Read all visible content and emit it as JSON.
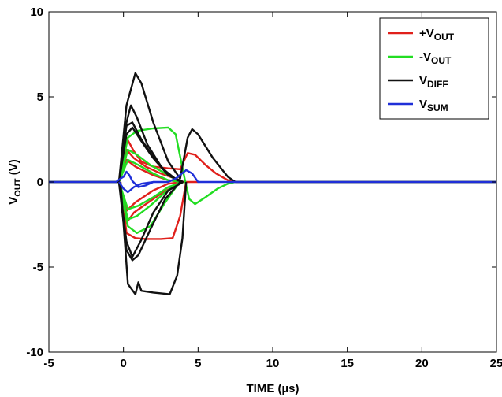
{
  "chart_data": {
    "type": "line",
    "xlabel": "TIME (µs)",
    "ylabel": "V",
    "ylabel_sub": "OUT",
    "ylabel_unit": " (V)",
    "xlim": [
      -5,
      25
    ],
    "ylim": [
      -10,
      10
    ],
    "x_ticks": [
      -5,
      0,
      5,
      10,
      15,
      20,
      25
    ],
    "y_ticks": [
      10,
      5,
      0,
      -5,
      -10
    ],
    "grid": false,
    "legend_position": "top-right",
    "series": [
      {
        "name": "+V",
        "name_sub": "OUT",
        "color": "#e0201b",
        "traces": [
          [
            [
              -5,
              0
            ],
            [
              -0.3,
              0
            ],
            [
              0.2,
              2.6
            ],
            [
              0.7,
              1.8
            ],
            [
              1.2,
              1.2
            ],
            [
              2,
              0.9
            ],
            [
              3,
              0.8
            ],
            [
              3.8,
              0.75
            ],
            [
              4.3,
              1.7
            ],
            [
              4.8,
              1.6
            ],
            [
              5.5,
              1.0
            ],
            [
              6.2,
              0.5
            ],
            [
              7,
              0.1
            ],
            [
              7.5,
              0
            ],
            [
              25,
              0
            ]
          ],
          [
            [
              -0.3,
              0
            ],
            [
              0.2,
              1.9
            ],
            [
              0.7,
              1.4
            ],
            [
              1.5,
              0.9
            ],
            [
              2.5,
              0.5
            ],
            [
              3.5,
              0.2
            ],
            [
              4,
              0
            ],
            [
              5,
              0
            ]
          ],
          [
            [
              -0.3,
              0
            ],
            [
              0.2,
              1.3
            ],
            [
              0.8,
              0.9
            ],
            [
              2,
              0.4
            ],
            [
              3,
              0.1
            ],
            [
              4,
              0
            ]
          ],
          [
            [
              -0.3,
              0
            ],
            [
              0.2,
              -2.4
            ],
            [
              0.7,
              -1.8
            ],
            [
              1.5,
              -1.3
            ],
            [
              2.5,
              -0.7
            ],
            [
              3.5,
              -0.2
            ],
            [
              4,
              0
            ]
          ],
          [
            [
              -0.3,
              0
            ],
            [
              0.2,
              -1.7
            ],
            [
              0.8,
              -1.2
            ],
            [
              2,
              -0.5
            ],
            [
              3,
              -0.1
            ],
            [
              4,
              0
            ]
          ],
          [
            [
              -0.2,
              0
            ],
            [
              0.2,
              -3.0
            ],
            [
              0.8,
              -3.3
            ],
            [
              1.5,
              -3.35
            ],
            [
              2.5,
              -3.35
            ],
            [
              3.3,
              -3.3
            ],
            [
              3.8,
              -2.0
            ],
            [
              4.2,
              0
            ]
          ]
        ]
      },
      {
        "name": "-V",
        "name_sub": "OUT",
        "color": "#22dd22",
        "traces": [
          [
            [
              -5,
              0
            ],
            [
              -0.3,
              0
            ],
            [
              0.3,
              2.6
            ],
            [
              0.9,
              3.0
            ],
            [
              2,
              3.15
            ],
            [
              3,
              3.2
            ],
            [
              3.5,
              2.8
            ],
            [
              4.1,
              0.2
            ],
            [
              4.4,
              -1.0
            ],
            [
              4.8,
              -1.3
            ],
            [
              5.5,
              -0.9
            ],
            [
              6.3,
              -0.4
            ],
            [
              7,
              -0.1
            ],
            [
              7.5,
              0
            ],
            [
              25,
              0
            ]
          ],
          [
            [
              -0.3,
              0
            ],
            [
              0.3,
              1.9
            ],
            [
              0.9,
              1.6
            ],
            [
              1.8,
              1.0
            ],
            [
              2.8,
              0.5
            ],
            [
              3.6,
              0.1
            ],
            [
              4,
              0
            ]
          ],
          [
            [
              -0.3,
              0
            ],
            [
              0.3,
              1.3
            ],
            [
              1,
              1.0
            ],
            [
              2,
              0.5
            ],
            [
              3,
              0.1
            ],
            [
              4,
              0
            ]
          ],
          [
            [
              -0.3,
              0
            ],
            [
              0.3,
              -1.6
            ],
            [
              1,
              -1.4
            ],
            [
              2,
              -0.9
            ],
            [
              3,
              -0.3
            ],
            [
              4,
              0
            ]
          ],
          [
            [
              -0.3,
              0
            ],
            [
              0.3,
              -2.2
            ],
            [
              0.9,
              -2.0
            ],
            [
              1.8,
              -1.4
            ],
            [
              2.8,
              -0.6
            ],
            [
              3.6,
              -0.1
            ],
            [
              4,
              0
            ]
          ],
          [
            [
              -0.3,
              0
            ],
            [
              0.3,
              -2.6
            ],
            [
              0.9,
              -3.0
            ],
            [
              1.8,
              -2.6
            ],
            [
              2.8,
              -1.2
            ],
            [
              3.6,
              -0.2
            ],
            [
              4,
              0
            ]
          ]
        ]
      },
      {
        "name": "V",
        "name_sub": "DIFF",
        "color": "#111111",
        "traces": [
          [
            [
              -5,
              0
            ],
            [
              -0.3,
              0
            ],
            [
              0.2,
              4.5
            ],
            [
              0.8,
              6.4
            ],
            [
              1.2,
              5.8
            ],
            [
              2,
              3.5
            ],
            [
              3,
              1.2
            ],
            [
              3.8,
              0.2
            ],
            [
              4.3,
              2.6
            ],
            [
              4.6,
              3.1
            ],
            [
              5,
              2.8
            ],
            [
              6,
              1.4
            ],
            [
              7,
              0.3
            ],
            [
              7.5,
              0
            ],
            [
              25,
              0
            ]
          ],
          [
            [
              -0.3,
              0
            ],
            [
              0.2,
              3.5
            ],
            [
              0.5,
              4.5
            ],
            [
              0.9,
              3.8
            ],
            [
              1.6,
              2.2
            ],
            [
              2.6,
              0.8
            ],
            [
              3.6,
              0.1
            ],
            [
              4,
              0
            ]
          ],
          [
            [
              -0.3,
              0
            ],
            [
              0.2,
              3.3
            ],
            [
              0.6,
              3.5
            ],
            [
              1.2,
              2.5
            ],
            [
              2.2,
              1.2
            ],
            [
              3.2,
              0.3
            ],
            [
              4,
              0
            ]
          ],
          [
            [
              -0.3,
              0
            ],
            [
              0.2,
              2.8
            ],
            [
              0.6,
              3.2
            ],
            [
              1.2,
              2.4
            ],
            [
              2,
              1.4
            ],
            [
              3,
              0.4
            ],
            [
              4,
              0
            ]
          ],
          [
            [
              -0.3,
              0
            ],
            [
              0.2,
              -3.5
            ],
            [
              0.6,
              -4.4
            ],
            [
              1.2,
              -3.4
            ],
            [
              2,
              -1.8
            ],
            [
              3,
              -0.5
            ],
            [
              4,
              0
            ]
          ],
          [
            [
              -0.3,
              0
            ],
            [
              0.2,
              -4.0
            ],
            [
              0.6,
              -4.6
            ],
            [
              1,
              -4.3
            ],
            [
              1.8,
              -2.8
            ],
            [
              2.8,
              -1.0
            ],
            [
              3.8,
              0
            ],
            [
              4,
              0
            ]
          ],
          [
            [
              -0.2,
              0
            ],
            [
              0.3,
              -6.0
            ],
            [
              0.8,
              -6.6
            ],
            [
              1.0,
              -5.9
            ],
            [
              1.2,
              -6.4
            ],
            [
              2,
              -6.5
            ],
            [
              3.1,
              -6.6
            ],
            [
              3.6,
              -5.5
            ],
            [
              3.95,
              -3.3
            ],
            [
              4.2,
              0
            ]
          ]
        ]
      },
      {
        "name": "V",
        "name_sub": "SUM",
        "color": "#1f2fd8",
        "traces": [
          [
            [
              -5,
              0
            ],
            [
              -0.5,
              0
            ],
            [
              -0.2,
              0.2
            ],
            [
              0,
              0.3
            ],
            [
              0.2,
              0.6
            ],
            [
              0.4,
              0.4
            ],
            [
              0.6,
              0.05
            ],
            [
              1,
              -0.3
            ],
            [
              1.5,
              -0.2
            ],
            [
              2,
              0
            ],
            [
              2.5,
              0
            ],
            [
              3,
              0
            ],
            [
              3.5,
              0.2
            ],
            [
              4.2,
              0.7
            ],
            [
              4.6,
              0.5
            ],
            [
              5,
              0
            ],
            [
              25,
              0
            ]
          ],
          [
            [
              -0.3,
              0
            ],
            [
              0,
              -0.4
            ],
            [
              0.3,
              -0.6
            ],
            [
              0.7,
              -0.3
            ],
            [
              1.2,
              -0.1
            ],
            [
              2,
              0
            ]
          ]
        ]
      }
    ]
  }
}
